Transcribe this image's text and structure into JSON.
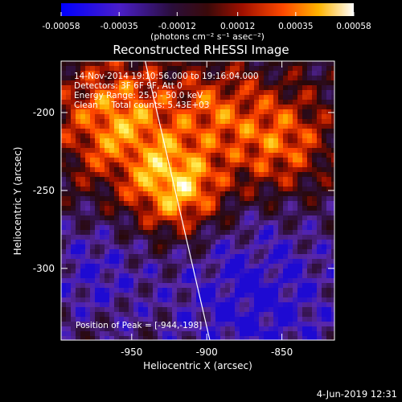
{
  "chart_data": {
    "type": "heatmap",
    "title": "Reconstructed RHESSI Image",
    "xlabel": "Heliocentric X (arcsec)",
    "ylabel": "Heliocentric Y (arcsec)",
    "x_ticks": [
      "-950",
      "-900",
      "-850"
    ],
    "x_tick_values": [
      -950,
      -900,
      -850
    ],
    "y_ticks": [
      "-200",
      "-250",
      "-300"
    ],
    "y_tick_values": [
      -200,
      -250,
      -300
    ],
    "xlim": [
      -997,
      -815
    ],
    "ylim": [
      -346,
      -167
    ],
    "colorbar": {
      "ticks": [
        "-0.00058",
        "-0.00035",
        "-0.00012",
        "0.00012",
        "0.00035",
        "0.00058"
      ],
      "tick_values": [
        -0.00058,
        -0.00035,
        -0.00012,
        0.00012,
        0.00035,
        0.00058
      ],
      "range": [
        -0.00058,
        0.00058
      ],
      "label": "(photons cm⁻² s⁻¹ asec⁻²)",
      "colormap": "blue-purple-red-orange-yellow-white"
    },
    "annotations": [
      "14-Nov-2014 19:10:56.000 to 19:16:04.000",
      "Detectors: 3F 6F 9F, Att 0",
      "Energy Range: 25.0 - 50.0 keV",
      "Clean     Total counts: 5.43E+03"
    ],
    "peak_label": "Position of Peak = [-944,-198]",
    "peak": [
      -944,
      -198
    ],
    "limb_line": [
      [
        -941,
        -167
      ],
      [
        -898,
        -346
      ]
    ]
  },
  "footer": {
    "date": "4-Jun-2019 12:31"
  }
}
